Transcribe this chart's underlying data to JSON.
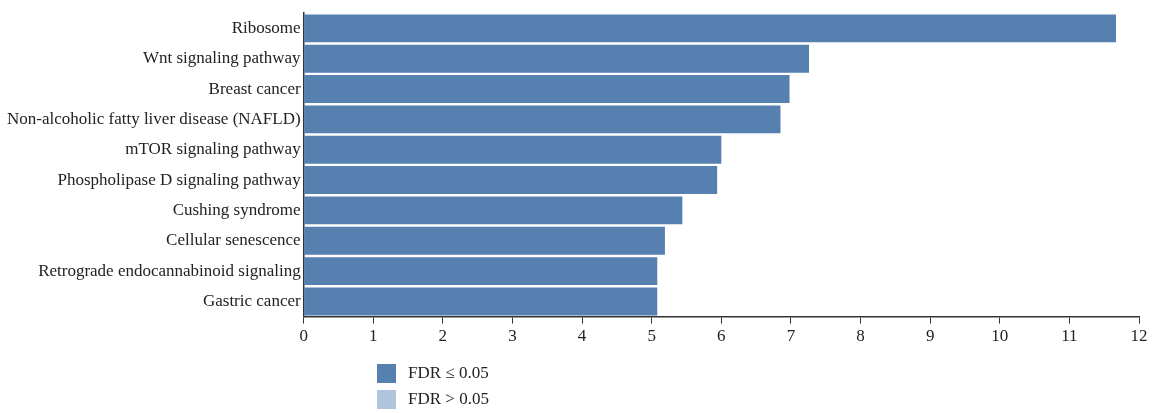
{
  "chart_data": {
    "type": "bar",
    "orientation": "horizontal",
    "categories": [
      "Ribosome",
      "Wnt signaling pathway",
      "Breast cancer",
      "Non-alcoholic fatty liver disease (NAFLD)",
      "mTOR signaling pathway",
      "Phospholipase D signaling pathway",
      "Cushing syndrome",
      "Cellular senescence",
      "Retrograde endocannabinoid signaling",
      "Gastric cancer"
    ],
    "series": [
      {
        "name": "FDR ≤ 0.05",
        "color": "#5580b0",
        "values": [
          11.67,
          7.26,
          6.98,
          6.85,
          6.0,
          5.94,
          5.44,
          5.19,
          5.08,
          5.08
        ]
      },
      {
        "name": "FDR > 0.05",
        "color": "#b0c4de",
        "values": [
          null,
          null,
          null,
          null,
          null,
          null,
          null,
          null,
          null,
          null
        ]
      }
    ],
    "xlim": [
      0,
      12
    ],
    "xticks": [
      0,
      1,
      2,
      3,
      4,
      5,
      6,
      7,
      8,
      9,
      10,
      11,
      12
    ],
    "grid": false,
    "legend": "bottom left"
  }
}
